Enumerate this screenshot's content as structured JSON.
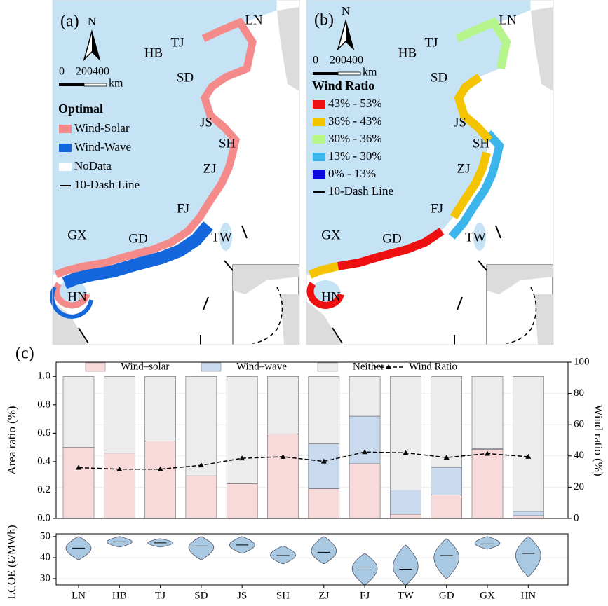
{
  "maps": [
    {
      "label": "(a)",
      "north": "N",
      "scale_labels": [
        "0",
        "200400",
        "km"
      ],
      "provinces": [
        "LN",
        "TJ",
        "HB",
        "SD",
        "JS",
        "SH",
        "ZJ",
        "FJ",
        "TW",
        "GD",
        "GX",
        "HN"
      ],
      "legend_title": "Optimal",
      "legend": [
        {
          "name": "Wind-Solar",
          "color": "#f48a8a"
        },
        {
          "name": "Wind-Wave",
          "color": "#1466dc"
        },
        {
          "name": "NoData",
          "color": "#ffffff"
        },
        {
          "name": "10-Dash Line",
          "color": "#000000"
        }
      ]
    },
    {
      "label": "(b)",
      "north": "N",
      "scale_labels": [
        "0",
        "200400",
        "km"
      ],
      "provinces": [
        "LN",
        "TJ",
        "HB",
        "SD",
        "JS",
        "SH",
        "ZJ",
        "FJ",
        "TW",
        "GD",
        "GX",
        "HN"
      ],
      "legend_title": "Wind Ratio",
      "legend": [
        {
          "name": "43% - 53%",
          "color": "#ee1010"
        },
        {
          "name": "36% - 43%",
          "color": "#f5c400"
        },
        {
          "name": "30% - 36%",
          "color": "#b6f58c"
        },
        {
          "name": "13% - 30%",
          "color": "#3cb4ec"
        },
        {
          "name": "0% - 13%",
          "color": "#0a0adc"
        },
        {
          "name": "10-Dash Line",
          "color": "#000000"
        }
      ]
    }
  ],
  "chart_data": [
    {
      "type": "bar",
      "label": "(c)",
      "ylabel": "Area ratio (%)",
      "y2label": "Wind ratio (%)",
      "ylim": [
        0,
        1.1
      ],
      "yticks": [
        {
          "value": 0,
          "label": "0.0"
        },
        0.2,
        0.4,
        0.6,
        0.8,
        {
          "value": 1,
          "label": "1.0"
        }
      ],
      "y2lim": [
        0,
        100
      ],
      "y2ticks": [
        0,
        20,
        40,
        60,
        80,
        100
      ],
      "grid": true,
      "series": [
        {
          "name": "Wind–solar",
          "color": "#f9dada",
          "values": [
            0.5,
            0.46,
            0.545,
            0.3,
            0.245,
            0.595,
            0.21,
            0.385,
            0.03,
            0.165,
            0.485,
            0.02
          ]
        },
        {
          "name": "Wind–wave",
          "color": "#c9d9ee",
          "values": [
            0,
            0,
            0,
            0,
            0,
            0,
            0.315,
            0.335,
            0.17,
            0.195,
            0.005,
            0.03
          ]
        },
        {
          "name": "Neither",
          "color": "#ececec",
          "values": [
            0.5,
            0.54,
            0.455,
            0.7,
            0.755,
            0.405,
            0.475,
            0.28,
            0.8,
            0.64,
            0.51,
            0.95
          ]
        },
        {
          "name": "Wind Ratio",
          "color": "#000000",
          "axis": "y2",
          "values": [
            32.5,
            31.5,
            31.5,
            34,
            38.5,
            39.5,
            36.5,
            42.5,
            42,
            39,
            41.5,
            39.5
          ]
        }
      ]
    },
    {
      "type": "violin",
      "ylabel": "LCOE (€/MWh)",
      "color": "#a9c8e2",
      "categories": [
        "LN",
        "HB",
        "TJ",
        "SD",
        "JS",
        "SH",
        "ZJ",
        "FJ",
        "TW",
        "GD",
        "GX",
        "HN"
      ],
      "ylim": [
        27,
        51.3
      ],
      "yticks": [
        30,
        40,
        50
      ],
      "grid": true,
      "median": [
        44.5,
        47.5,
        47,
        45.5,
        46,
        41,
        42.5,
        35.5,
        34.5,
        41,
        46.5,
        42
      ],
      "min": [
        39,
        45,
        45,
        39,
        42,
        37,
        37,
        27,
        27,
        30,
        44,
        31
      ],
      "max": [
        50,
        50,
        49,
        50,
        50,
        45.5,
        50,
        42,
        46,
        49,
        50,
        50
      ]
    }
  ]
}
